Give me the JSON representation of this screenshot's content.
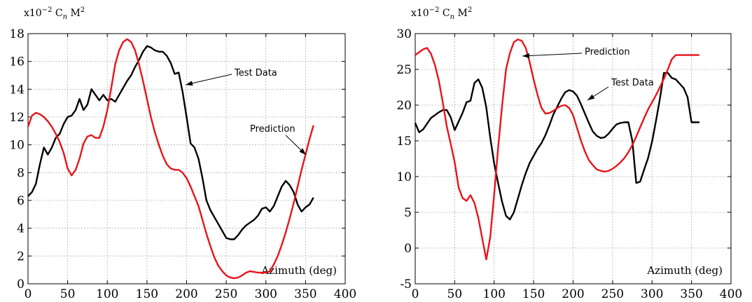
{
  "chart_data": [
    {
      "type": "line",
      "title": "",
      "ylabel": "x10^-2 Cn M^2",
      "ylabel_parts": {
        "base": "x10",
        "exp": "−2",
        "var": "C",
        "sub": "n",
        "var2": "M",
        "sup2": "2"
      },
      "xlabel": "Azimuth (deg)",
      "xlim": [
        0,
        400
      ],
      "ylim": [
        0,
        18
      ],
      "xticks": [
        0,
        50,
        100,
        150,
        200,
        250,
        300,
        350,
        400
      ],
      "yticks": [
        0,
        2,
        4,
        6,
        8,
        10,
        12,
        14,
        16,
        18
      ],
      "grid": true,
      "series": [
        {
          "name": "Test Data",
          "color": "#000000",
          "x": [
            0,
            5,
            10,
            15,
            20,
            25,
            30,
            35,
            40,
            45,
            50,
            55,
            60,
            65,
            70,
            75,
            80,
            85,
            90,
            95,
            100,
            105,
            110,
            115,
            120,
            125,
            130,
            135,
            140,
            145,
            150,
            155,
            160,
            165,
            170,
            175,
            180,
            185,
            190,
            195,
            200,
            205,
            210,
            215,
            220,
            225,
            230,
            235,
            240,
            245,
            250,
            255,
            260,
            265,
            270,
            275,
            280,
            285,
            290,
            295,
            300,
            305,
            310,
            315,
            320,
            325,
            330,
            335,
            340,
            345,
            350,
            355,
            360
          ],
          "values": [
            6.3,
            6.6,
            7.2,
            8.6,
            9.8,
            9.3,
            9.8,
            10.5,
            10.8,
            11.5,
            12.0,
            12.1,
            12.5,
            13.3,
            12.5,
            12.9,
            14.0,
            13.6,
            13.2,
            13.6,
            13.2,
            13.3,
            13.1,
            13.6,
            14.1,
            14.6,
            15.0,
            15.6,
            16.1,
            16.7,
            17.1,
            17.0,
            16.8,
            16.7,
            16.7,
            16.4,
            15.9,
            15.1,
            15.2,
            13.8,
            12.0,
            10.1,
            9.8,
            9.0,
            7.6,
            6.0,
            5.3,
            4.8,
            4.3,
            3.8,
            3.3,
            3.2,
            3.2,
            3.5,
            3.9,
            4.2,
            4.4,
            4.6,
            4.9,
            5.4,
            5.5,
            5.2,
            5.6,
            6.3,
            7.0,
            7.4,
            7.1,
            6.6,
            5.7,
            5.2,
            5.5,
            5.7,
            6.2
          ]
        },
        {
          "name": "Prediction",
          "color": "#e8141a",
          "x": [
            0,
            5,
            10,
            15,
            20,
            25,
            30,
            35,
            40,
            45,
            50,
            55,
            60,
            65,
            70,
            75,
            80,
            85,
            90,
            95,
            100,
            105,
            110,
            115,
            120,
            125,
            130,
            135,
            140,
            145,
            150,
            155,
            160,
            165,
            170,
            175,
            180,
            185,
            190,
            195,
            200,
            205,
            210,
            215,
            220,
            225,
            230,
            235,
            240,
            245,
            250,
            255,
            260,
            265,
            270,
            275,
            280,
            285,
            290,
            295,
            300,
            305,
            310,
            315,
            320,
            325,
            330,
            335,
            340,
            345,
            350,
            355,
            360
          ],
          "values": [
            11.3,
            12.1,
            12.3,
            12.2,
            12.0,
            11.7,
            11.3,
            10.8,
            10.2,
            9.4,
            8.3,
            7.8,
            8.2,
            9.0,
            10.1,
            10.6,
            10.7,
            10.5,
            10.5,
            11.3,
            12.5,
            14.1,
            15.8,
            16.8,
            17.4,
            17.6,
            17.4,
            16.8,
            15.8,
            14.6,
            13.3,
            12.0,
            10.9,
            10.0,
            9.2,
            8.6,
            8.3,
            8.2,
            8.2,
            8.0,
            7.6,
            7.0,
            6.3,
            5.6,
            4.6,
            3.6,
            2.7,
            1.9,
            1.3,
            0.9,
            0.6,
            0.45,
            0.4,
            0.45,
            0.6,
            0.8,
            0.9,
            0.85,
            0.8,
            0.8,
            0.8,
            0.9,
            1.4,
            2.0,
            2.8,
            3.7,
            4.7,
            5.8,
            7.0,
            8.2,
            9.3,
            10.4,
            11.4
          ]
        }
      ],
      "annotations": [
        {
          "text": "Test Data",
          "x": 260,
          "y": 15.0,
          "target_x": 200,
          "target_y": 14.2
        },
        {
          "text": "Prediction",
          "x": 330,
          "y": 11.0,
          "target_x": 350,
          "target_y": 9.0
        }
      ]
    },
    {
      "type": "line",
      "title": "",
      "ylabel": "x10^-2 Cn M^2",
      "ylabel_parts": {
        "base": "x10",
        "exp": "−2",
        "var": "C",
        "sub": "n",
        "var2": "M",
        "sup2": "2"
      },
      "xlabel": "Azimuth (deg)",
      "xlim": [
        0,
        400
      ],
      "ylim": [
        -5,
        30
      ],
      "xticks": [
        0,
        50,
        100,
        150,
        200,
        250,
        300,
        350,
        400
      ],
      "yticks": [
        -5,
        0,
        5,
        10,
        15,
        20,
        25,
        30
      ],
      "grid": true,
      "series": [
        {
          "name": "Test Data",
          "color": "#000000",
          "x": [
            0,
            5,
            10,
            15,
            20,
            25,
            30,
            35,
            40,
            45,
            50,
            55,
            60,
            65,
            70,
            75,
            80,
            85,
            90,
            95,
            100,
            105,
            110,
            115,
            120,
            125,
            130,
            135,
            140,
            145,
            150,
            155,
            160,
            165,
            170,
            175,
            180,
            185,
            190,
            195,
            200,
            205,
            210,
            215,
            220,
            225,
            230,
            235,
            240,
            245,
            250,
            255,
            260,
            265,
            270,
            275,
            280,
            285,
            290,
            295,
            300,
            305,
            310,
            315,
            320,
            325,
            330,
            335,
            340,
            345,
            350,
            355,
            360
          ],
          "values": [
            17.5,
            16.2,
            16.6,
            17.4,
            18.2,
            18.6,
            19.0,
            19.3,
            19.3,
            18.3,
            16.5,
            17.7,
            18.9,
            20.4,
            20.6,
            23.1,
            23.6,
            22.4,
            19.7,
            15.5,
            11.8,
            9.1,
            6.5,
            4.5,
            4.0,
            5.0,
            6.9,
            8.8,
            10.5,
            11.9,
            12.9,
            13.9,
            14.7,
            15.8,
            17.2,
            18.7,
            19.8,
            20.9,
            21.8,
            22.1,
            21.9,
            21.3,
            20.1,
            18.8,
            17.5,
            16.3,
            15.7,
            15.4,
            15.5,
            16.0,
            16.7,
            17.3,
            17.5,
            17.6,
            17.6,
            15.0,
            9.1,
            9.3,
            11.0,
            12.6,
            14.9,
            17.8,
            20.9,
            24.5,
            24.5,
            23.8,
            23.6,
            23.0,
            22.4,
            21.1,
            17.6,
            17.6,
            17.6
          ],
          "x_override": [
            0,
            5,
            10,
            15,
            20,
            25,
            30,
            35,
            40,
            45,
            50,
            55,
            60,
            65,
            70,
            75,
            80,
            85,
            90,
            95,
            100,
            105,
            110,
            115,
            120,
            125,
            130,
            135,
            140,
            145,
            150,
            155,
            160,
            165,
            170,
            175,
            180,
            185,
            190,
            195,
            200,
            205,
            210,
            215,
            220,
            225,
            230,
            235,
            240,
            245,
            250,
            255,
            260,
            265,
            270,
            275,
            280,
            285,
            290,
            295,
            300,
            305,
            310,
            315,
            320,
            325,
            330,
            335,
            340,
            345,
            350,
            355,
            360
          ]
        },
        {
          "name": "Prediction",
          "color": "#e8141a",
          "x": [
            0,
            5,
            10,
            15,
            20,
            25,
            30,
            35,
            40,
            45,
            50,
            55,
            60,
            65,
            70,
            75,
            80,
            85,
            90,
            95,
            100,
            105,
            110,
            115,
            120,
            125,
            130,
            135,
            140,
            145,
            150,
            155,
            160,
            165,
            170,
            175,
            180,
            185,
            190,
            195,
            200,
            205,
            210,
            215,
            220,
            225,
            230,
            235,
            240,
            245,
            250,
            255,
            260,
            265,
            270,
            275,
            280,
            285,
            290,
            295,
            300,
            305,
            310,
            315,
            320,
            325,
            330,
            335,
            340,
            345,
            350,
            355,
            360
          ],
          "values": [
            27.0,
            27.4,
            27.8,
            28.0,
            27.2,
            25.6,
            23.4,
            20.3,
            17.0,
            14.6,
            12.0,
            8.5,
            7.0,
            6.6,
            7.4,
            6.3,
            4.2,
            1.3,
            -1.6,
            1.5,
            7.5,
            14.0,
            19.8,
            25.0,
            27.3,
            28.8,
            29.2,
            29.0,
            28.0,
            26.0,
            23.6,
            21.4,
            19.6,
            18.8,
            18.9,
            19.2,
            19.6,
            19.9,
            20.0,
            19.6,
            18.6,
            16.8,
            15.0,
            13.5,
            12.3,
            11.6,
            11.0,
            10.8,
            10.7,
            10.8,
            11.1,
            11.5,
            12.0,
            12.6,
            13.4,
            14.4,
            15.6,
            16.9,
            18.2,
            19.4,
            20.4,
            21.4,
            22.5,
            23.7,
            25.0,
            26.4,
            27.0,
            27.0,
            27.0,
            27.0,
            27.0,
            27.0,
            27.0
          ]
        }
      ],
      "annotations": [
        {
          "text": "Prediction",
          "x": 255,
          "y": 28.2,
          "target_x": 165,
          "target_y": 27.6
        },
        {
          "text": "Test Data",
          "x": 315,
          "y": 22.3,
          "target_x": 232,
          "target_y": 19.5
        }
      ]
    }
  ]
}
